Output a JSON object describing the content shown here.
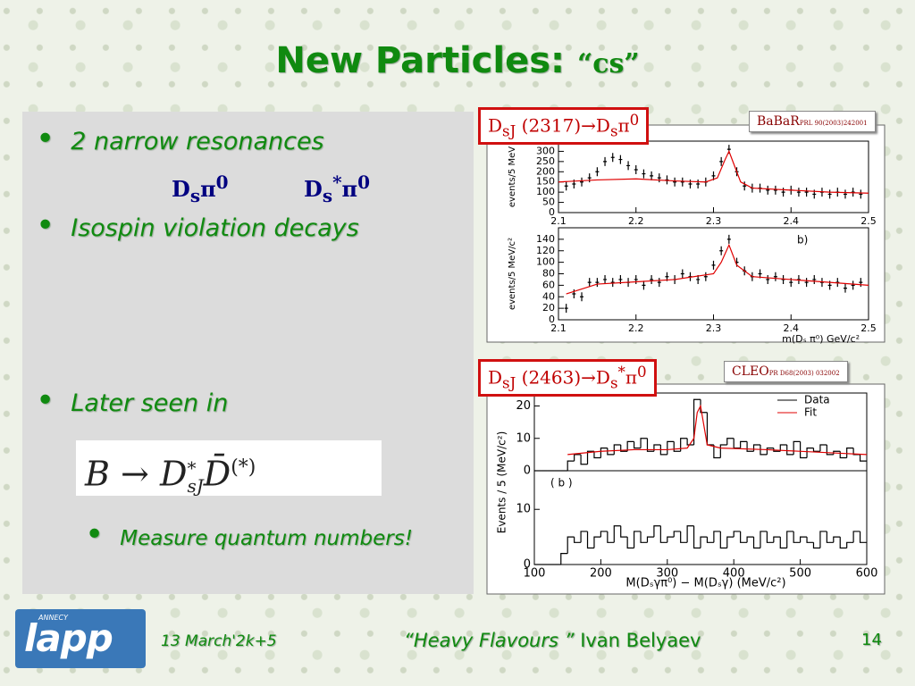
{
  "title": "New Particles:",
  "title_quote": "“cs”",
  "bullets": [
    "2 narrow resonances",
    "Isospin violation decays",
    "Later seen in"
  ],
  "states": [
    {
      "base": "D",
      "sub": "s",
      "sup": "",
      "pi": "π",
      "pi_sup": "0"
    },
    {
      "base": "D",
      "sub": "s",
      "sup": "*",
      "pi": "π",
      "pi_sup": "0"
    }
  ],
  "formula": {
    "b": "B",
    "arrow": "→",
    "d": "D",
    "d_sup": "*",
    "d_sub": "sJ",
    "dbar": "D̄",
    "dbar_sup": "(*)"
  },
  "sub_bullet": "Measure quantum numbers!",
  "charts": [
    {
      "label": {
        "a": "D",
        "a_sub": "sJ",
        "mid": " (2317)→D",
        "b_sub": "s",
        "b_sup": "",
        "pi": "π",
        "pi_sup": "0"
      },
      "reference": "BaBaR",
      "reference_detail": "PRL 90(2003)242001",
      "panels": [
        {
          "type": "scatter",
          "ylabel": "events/5 MeV",
          "color": "#000000",
          "fit_color": "#e00000",
          "xlim": [
            2.1,
            2.5
          ],
          "ylim": [
            0,
            350
          ],
          "xticks": [
            2.1,
            2.2,
            2.3,
            2.4,
            2.5
          ],
          "yticks": [
            0,
            50,
            100,
            150,
            200,
            250,
            300
          ],
          "x": [
            2.11,
            2.12,
            2.13,
            2.14,
            2.15,
            2.16,
            2.17,
            2.18,
            2.19,
            2.2,
            2.21,
            2.22,
            2.23,
            2.24,
            2.25,
            2.26,
            2.27,
            2.28,
            2.29,
            2.3,
            2.31,
            2.32,
            2.33,
            2.34,
            2.35,
            2.36,
            2.37,
            2.38,
            2.39,
            2.4,
            2.41,
            2.42,
            2.43,
            2.44,
            2.45,
            2.46,
            2.47,
            2.48,
            2.49
          ],
          "values": [
            130,
            140,
            150,
            170,
            200,
            250,
            270,
            260,
            230,
            210,
            190,
            180,
            170,
            160,
            150,
            150,
            140,
            140,
            150,
            180,
            250,
            310,
            200,
            130,
            120,
            120,
            110,
            110,
            100,
            110,
            100,
            100,
            90,
            100,
            90,
            100,
            90,
            100,
            90
          ],
          "fit": {
            "x": [
              2.1,
              2.15,
              2.2,
              2.25,
              2.29,
              2.305,
              2.315,
              2.32,
              2.325,
              2.335,
              2.35,
              2.4,
              2.45,
              2.5
            ],
            "values": [
              150,
              160,
              165,
              155,
              150,
              170,
              260,
              300,
              250,
              150,
              120,
              110,
              100,
              95
            ]
          }
        },
        {
          "type": "scatter",
          "ylabel": "events/5 MeV/c²",
          "annotation": "b)",
          "xlabel": "m(Dₛ π⁰) GeV/c²",
          "color": "#000000",
          "fit_color": "#e00000",
          "xlim": [
            2.1,
            2.5
          ],
          "ylim": [
            0,
            160
          ],
          "xticks": [
            2.1,
            2.2,
            2.3,
            2.4,
            2.5
          ],
          "yticks": [
            0,
            20,
            40,
            60,
            80,
            100,
            120,
            140
          ],
          "x": [
            2.11,
            2.12,
            2.13,
            2.14,
            2.15,
            2.16,
            2.17,
            2.18,
            2.19,
            2.2,
            2.21,
            2.22,
            2.23,
            2.24,
            2.25,
            2.26,
            2.27,
            2.28,
            2.29,
            2.3,
            2.31,
            2.32,
            2.33,
            2.34,
            2.35,
            2.36,
            2.37,
            2.38,
            2.39,
            2.4,
            2.41,
            2.42,
            2.43,
            2.44,
            2.45,
            2.46,
            2.47,
            2.48,
            2.49
          ],
          "values": [
            20,
            45,
            40,
            65,
            65,
            70,
            65,
            70,
            65,
            70,
            60,
            70,
            65,
            75,
            70,
            80,
            75,
            70,
            75,
            95,
            120,
            140,
            100,
            85,
            75,
            80,
            70,
            75,
            70,
            65,
            70,
            65,
            70,
            65,
            60,
            65,
            55,
            60,
            65
          ],
          "fit": {
            "x": [
              2.11,
              2.15,
              2.2,
              2.25,
              2.3,
              2.31,
              2.32,
              2.33,
              2.35,
              2.4,
              2.45,
              2.5
            ],
            "values": [
              45,
              62,
              66,
              70,
              80,
              100,
              130,
              95,
              75,
              70,
              65,
              60
            ]
          }
        }
      ]
    },
    {
      "label": {
        "a": "D",
        "a_sub": "sJ",
        "mid": " (2463)→D",
        "b_sub": "s",
        "b_sup": "*",
        "pi": "π",
        "pi_sup": "0"
      },
      "reference": "CLEO",
      "reference_detail": "PR D68(2003) 032002",
      "ylabel": "Events / 5 (MeV/c²)",
      "xlabel": "M(Dₛγπ⁰) − M(Dₛγ) (MeV/c²)",
      "panels": [
        {
          "type": "histogram",
          "color": "#000000",
          "fit_color": "#e00000",
          "legend": [
            "Data",
            "Fit"
          ],
          "xlim": [
            100,
            600
          ],
          "ylim": [
            0,
            24
          ],
          "yticks": [
            0,
            10,
            20
          ],
          "bins": [
            100,
            110,
            120,
            130,
            140,
            150,
            160,
            170,
            180,
            190,
            200,
            210,
            220,
            230,
            240,
            250,
            260,
            270,
            280,
            290,
            300,
            310,
            320,
            330,
            340,
            350,
            360,
            370,
            380,
            390,
            400,
            410,
            420,
            430,
            440,
            450,
            460,
            470,
            480,
            490,
            500,
            510,
            520,
            530,
            540,
            550,
            560,
            570,
            580,
            590,
            600
          ],
          "counts": [
            0,
            0,
            0,
            0,
            0,
            3,
            5,
            2,
            6,
            4,
            7,
            5,
            8,
            6,
            9,
            7,
            10,
            6,
            8,
            5,
            9,
            6,
            10,
            8,
            22,
            18,
            8,
            4,
            8,
            10,
            7,
            9,
            6,
            8,
            5,
            7,
            6,
            8,
            5,
            9,
            4,
            7,
            6,
            8,
            5,
            6,
            4,
            7,
            5,
            3
          ],
          "fit": {
            "x": [
              150,
              200,
              250,
              300,
              330,
              340,
              345,
              350,
              355,
              360,
              380,
              450,
              550,
              600
            ],
            "values": [
              5,
              6,
              6.5,
              6.5,
              7,
              10,
              18,
              20,
              14,
              8,
              7,
              6.5,
              5.5,
              5
            ]
          }
        },
        {
          "type": "histogram",
          "annotation": "( b )",
          "color": "#000000",
          "xlim": [
            100,
            600
          ],
          "ylim": [
            0,
            17
          ],
          "xticks": [
            100,
            200,
            300,
            400,
            500,
            600
          ],
          "yticks": [
            0,
            10
          ],
          "bins": [
            100,
            110,
            120,
            130,
            140,
            150,
            160,
            170,
            180,
            190,
            200,
            210,
            220,
            230,
            240,
            250,
            260,
            270,
            280,
            290,
            300,
            310,
            320,
            330,
            340,
            350,
            360,
            370,
            380,
            390,
            400,
            410,
            420,
            430,
            440,
            450,
            460,
            470,
            480,
            490,
            500,
            510,
            520,
            530,
            540,
            550,
            560,
            570,
            580,
            590,
            600
          ],
          "counts": [
            0,
            0,
            0,
            0,
            2,
            5,
            4,
            6,
            3,
            5,
            6,
            4,
            7,
            5,
            3,
            6,
            4,
            5,
            7,
            4,
            5,
            6,
            4,
            7,
            3,
            5,
            4,
            6,
            3,
            5,
            6,
            4,
            5,
            3,
            6,
            4,
            5,
            3,
            6,
            4,
            5,
            4,
            3,
            6,
            4,
            5,
            3,
            4,
            6,
            4
          ]
        }
      ]
    }
  ],
  "footer": {
    "logo_small": "ANNECY",
    "logo": "lapp",
    "date": "13 March'2k+5",
    "talk": "“Heavy Flavours ”",
    "author": "Ivan  Belyaev",
    "page": "14"
  }
}
